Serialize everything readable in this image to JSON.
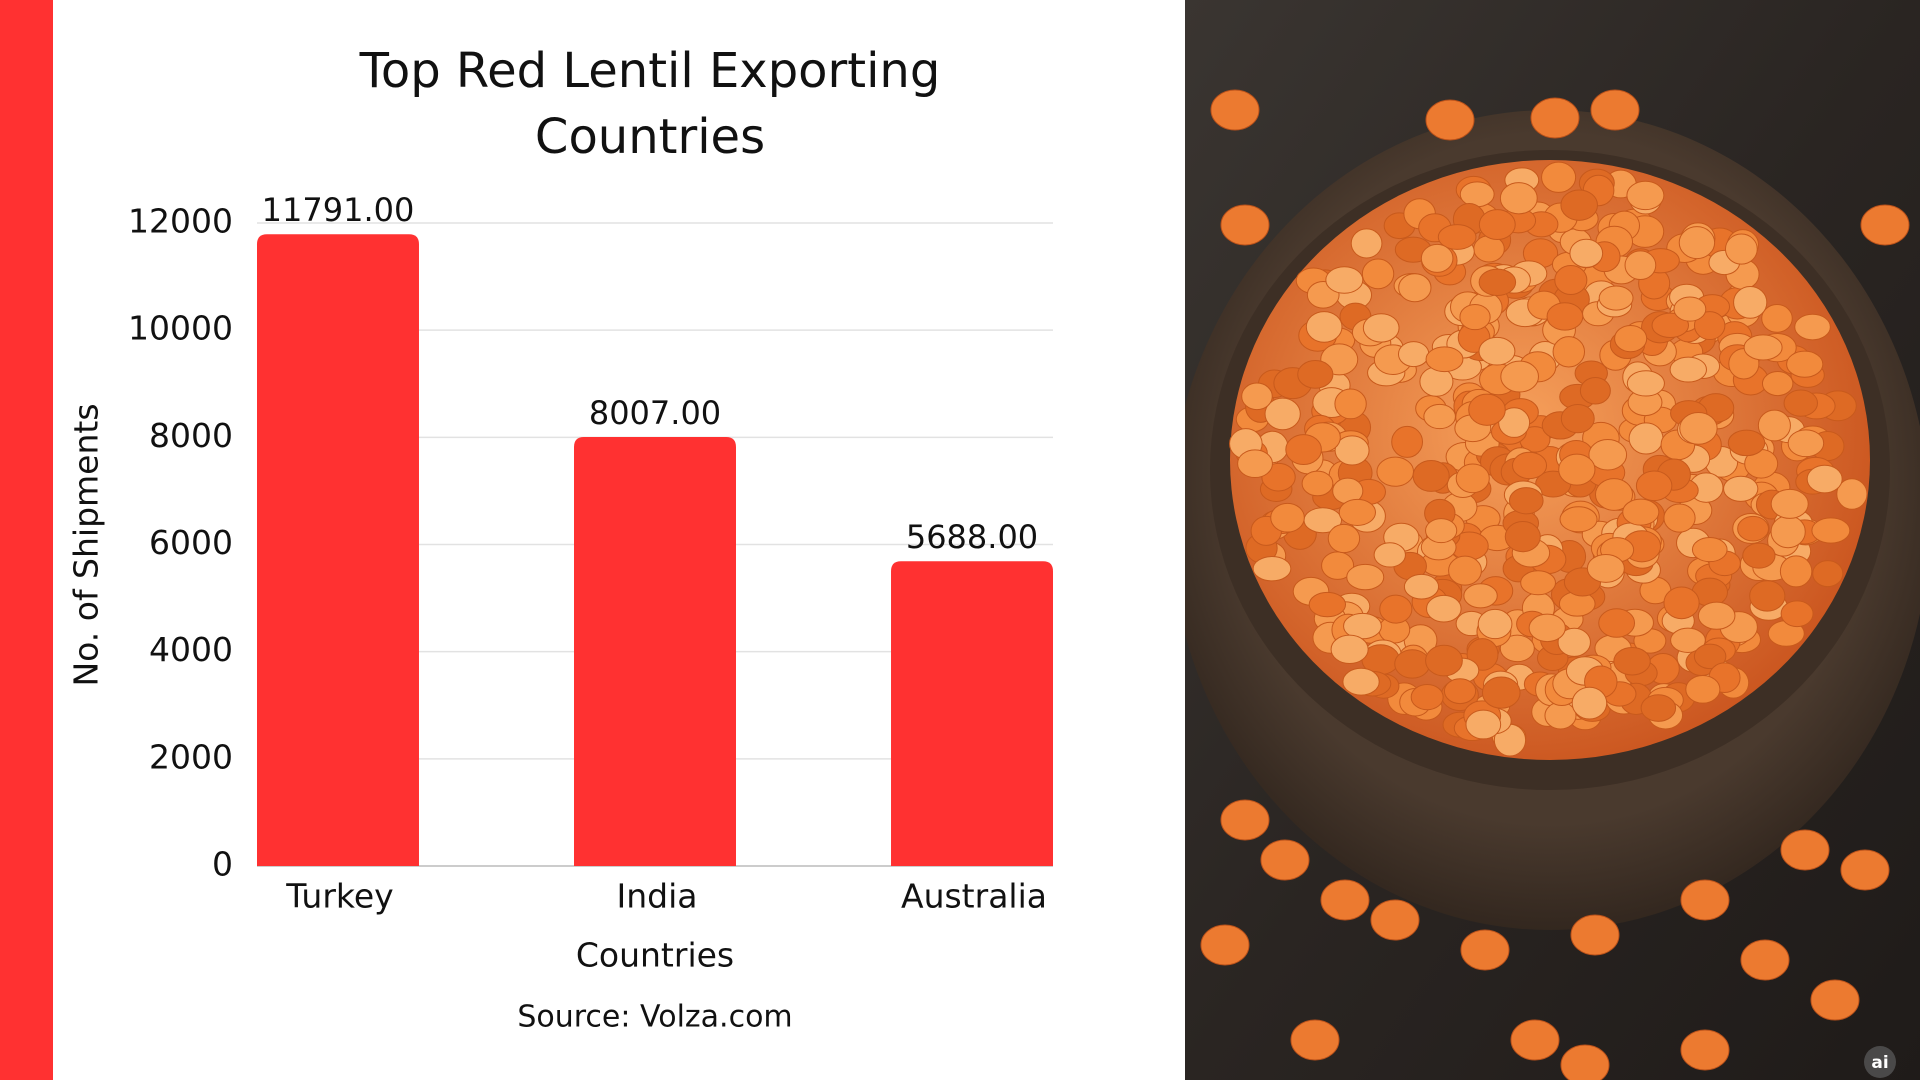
{
  "chart_data": {
    "type": "bar",
    "title": "Top Red Lentil Exporting Countries",
    "categories": [
      "Turkey",
      "India",
      "Australia"
    ],
    "values": [
      11791,
      8007,
      5688
    ],
    "value_labels": [
      "11791.00",
      "8007.00",
      "5688.00"
    ],
    "color": "#ff3131",
    "x_label": "Countries",
    "y_label": "No. of Shipments",
    "ylim": [
      0,
      12000
    ],
    "yticks": [
      0,
      2000,
      4000,
      6000,
      8000,
      10000,
      12000
    ],
    "grid": true,
    "source": "Source: Volza.com"
  },
  "photo_badge": "ai"
}
